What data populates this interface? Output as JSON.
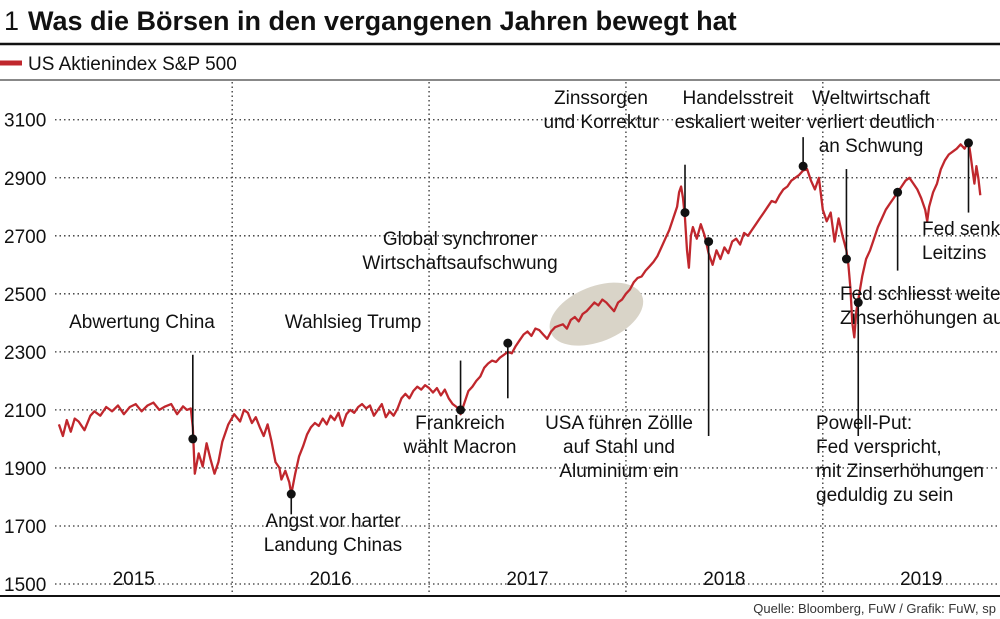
{
  "header": {
    "figure_number": "1",
    "title": "Was die Börsen in den vergangenen Jahren bewegt hat"
  },
  "source_text": "Quelle: Bloomberg, FuW / Grafik: FuW, sp",
  "colors": {
    "series": "#c0272d",
    "highlight": "#d9d4c8",
    "marker": "#111111",
    "rule": "#111111",
    "grid": "#333333"
  },
  "chart_data": {
    "type": "line",
    "title": "Was die Börsen in den vergangenen Jahren bewegt hat",
    "xlabel": "",
    "ylabel": "",
    "legend": {
      "label": "US Aktienindex S&P 500",
      "placement": "top-left"
    },
    "x_range": [
      2014.6,
      2019.4
    ],
    "ylim": [
      1500,
      3230
    ],
    "y_ticks": [
      1500,
      1700,
      1900,
      2100,
      2300,
      2500,
      2700,
      2900,
      3100
    ],
    "x_ticks": [
      2015,
      2016,
      2017,
      2018,
      2019
    ],
    "x_tick_labels": [
      "2015",
      "2016",
      "2017",
      "2018",
      "2019"
    ],
    "year_boundaries": [
      2015.5,
      2016.5,
      2017.5,
      2018.5
    ],
    "grid": true,
    "series": [
      {
        "name": "US Aktienindex S&P 500",
        "points": [
          [
            2014.62,
            2050
          ],
          [
            2014.64,
            2010
          ],
          [
            2014.66,
            2065
          ],
          [
            2014.68,
            2025
          ],
          [
            2014.7,
            2070
          ],
          [
            2014.72,
            2060
          ],
          [
            2014.75,
            2030
          ],
          [
            2014.78,
            2080
          ],
          [
            2014.8,
            2095
          ],
          [
            2014.83,
            2080
          ],
          [
            2014.86,
            2110
          ],
          [
            2014.89,
            2095
          ],
          [
            2014.92,
            2115
          ],
          [
            2014.95,
            2085
          ],
          [
            2014.98,
            2110
          ],
          [
            2015.01,
            2120
          ],
          [
            2015.04,
            2095
          ],
          [
            2015.07,
            2115
          ],
          [
            2015.1,
            2125
          ],
          [
            2015.13,
            2100
          ],
          [
            2015.16,
            2112
          ],
          [
            2015.19,
            2120
          ],
          [
            2015.22,
            2085
          ],
          [
            2015.25,
            2112
          ],
          [
            2015.27,
            2100
          ],
          [
            2015.29,
            2105
          ],
          [
            2015.3,
            2040
          ],
          [
            2015.31,
            1880
          ],
          [
            2015.33,
            1950
          ],
          [
            2015.35,
            1905
          ],
          [
            2015.37,
            1985
          ],
          [
            2015.39,
            1930
          ],
          [
            2015.41,
            1880
          ],
          [
            2015.43,
            1920
          ],
          [
            2015.45,
            1990
          ],
          [
            2015.48,
            2050
          ],
          [
            2015.51,
            2085
          ],
          [
            2015.54,
            2060
          ],
          [
            2015.56,
            2100
          ],
          [
            2015.58,
            2090
          ],
          [
            2015.6,
            2055
          ],
          [
            2015.62,
            2075
          ],
          [
            2015.64,
            2040
          ],
          [
            2015.66,
            2010
          ],
          [
            2015.68,
            2050
          ],
          [
            2015.7,
            1990
          ],
          [
            2015.72,
            1920
          ],
          [
            2015.74,
            1900
          ],
          [
            2015.75,
            1860
          ],
          [
            2015.77,
            1890
          ],
          [
            2015.79,
            1850
          ],
          [
            2015.8,
            1810
          ],
          [
            2015.82,
            1880
          ],
          [
            2015.84,
            1940
          ],
          [
            2015.86,
            1975
          ],
          [
            2015.88,
            2015
          ],
          [
            2015.9,
            2040
          ],
          [
            2015.92,
            2055
          ],
          [
            2015.94,
            2045
          ],
          [
            2015.96,
            2070
          ],
          [
            2015.98,
            2050
          ],
          [
            2016.0,
            2080
          ],
          [
            2016.02,
            2065
          ],
          [
            2016.04,
            2090
          ],
          [
            2016.06,
            2045
          ],
          [
            2016.08,
            2085
          ],
          [
            2016.1,
            2100
          ],
          [
            2016.12,
            2090
          ],
          [
            2016.14,
            2110
          ],
          [
            2016.16,
            2120
          ],
          [
            2016.18,
            2105
          ],
          [
            2016.2,
            2115
          ],
          [
            2016.22,
            2080
          ],
          [
            2016.24,
            2100
          ],
          [
            2016.26,
            2120
          ],
          [
            2016.28,
            2075
          ],
          [
            2016.3,
            2095
          ],
          [
            2016.32,
            2080
          ],
          [
            2016.34,
            2105
          ],
          [
            2016.36,
            2140
          ],
          [
            2016.38,
            2155
          ],
          [
            2016.4,
            2140
          ],
          [
            2016.42,
            2165
          ],
          [
            2016.44,
            2180
          ],
          [
            2016.46,
            2170
          ],
          [
            2016.48,
            2185
          ],
          [
            2016.5,
            2175
          ],
          [
            2016.52,
            2160
          ],
          [
            2016.54,
            2175
          ],
          [
            2016.56,
            2150
          ],
          [
            2016.58,
            2170
          ],
          [
            2016.6,
            2140
          ],
          [
            2016.62,
            2120
          ],
          [
            2016.64,
            2110
          ],
          [
            2016.66,
            2085
          ],
          [
            2016.68,
            2125
          ],
          [
            2016.7,
            2165
          ],
          [
            2016.72,
            2180
          ],
          [
            2016.74,
            2200
          ],
          [
            2016.76,
            2215
          ],
          [
            2016.78,
            2245
          ],
          [
            2016.8,
            2260
          ],
          [
            2016.82,
            2270
          ],
          [
            2016.84,
            2265
          ],
          [
            2016.86,
            2280
          ],
          [
            2016.88,
            2290
          ],
          [
            2016.9,
            2300
          ],
          [
            2016.92,
            2295
          ],
          [
            2016.94,
            2320
          ],
          [
            2016.96,
            2340
          ],
          [
            2016.98,
            2360
          ],
          [
            2017.0,
            2370
          ],
          [
            2017.02,
            2355
          ],
          [
            2017.04,
            2380
          ],
          [
            2017.06,
            2375
          ],
          [
            2017.08,
            2360
          ],
          [
            2017.1,
            2345
          ],
          [
            2017.12,
            2370
          ],
          [
            2017.14,
            2385
          ],
          [
            2017.16,
            2390
          ],
          [
            2017.18,
            2395
          ],
          [
            2017.2,
            2380
          ],
          [
            2017.22,
            2410
          ],
          [
            2017.24,
            2420
          ],
          [
            2017.26,
            2405
          ],
          [
            2017.28,
            2430
          ],
          [
            2017.3,
            2440
          ],
          [
            2017.32,
            2455
          ],
          [
            2017.34,
            2470
          ],
          [
            2017.36,
            2460
          ],
          [
            2017.38,
            2480
          ],
          [
            2017.4,
            2470
          ],
          [
            2017.42,
            2455
          ],
          [
            2017.44,
            2440
          ],
          [
            2017.46,
            2470
          ],
          [
            2017.48,
            2480
          ],
          [
            2017.5,
            2500
          ],
          [
            2017.52,
            2515
          ],
          [
            2017.54,
            2540
          ],
          [
            2017.56,
            2555
          ],
          [
            2017.58,
            2560
          ],
          [
            2017.6,
            2580
          ],
          [
            2017.62,
            2595
          ],
          [
            2017.64,
            2610
          ],
          [
            2017.66,
            2630
          ],
          [
            2017.68,
            2660
          ],
          [
            2017.7,
            2690
          ],
          [
            2017.72,
            2720
          ],
          [
            2017.74,
            2760
          ],
          [
            2017.76,
            2800
          ],
          [
            2017.77,
            2850
          ],
          [
            2017.78,
            2870
          ],
          [
            2017.79,
            2830
          ],
          [
            2017.8,
            2760
          ],
          [
            2017.81,
            2650
          ],
          [
            2017.82,
            2590
          ],
          [
            2017.83,
            2700
          ],
          [
            2017.84,
            2730
          ],
          [
            2017.86,
            2690
          ],
          [
            2017.88,
            2740
          ],
          [
            2017.9,
            2700
          ],
          [
            2017.92,
            2640
          ],
          [
            2017.94,
            2600
          ],
          [
            2017.96,
            2650
          ],
          [
            2017.98,
            2620
          ],
          [
            2018.0,
            2660
          ],
          [
            2018.02,
            2640
          ],
          [
            2018.04,
            2680
          ],
          [
            2018.06,
            2690
          ],
          [
            2018.08,
            2670
          ],
          [
            2018.1,
            2710
          ],
          [
            2018.12,
            2700
          ],
          [
            2018.14,
            2720
          ],
          [
            2018.16,
            2740
          ],
          [
            2018.18,
            2760
          ],
          [
            2018.2,
            2780
          ],
          [
            2018.22,
            2800
          ],
          [
            2018.24,
            2820
          ],
          [
            2018.26,
            2815
          ],
          [
            2018.28,
            2840
          ],
          [
            2018.3,
            2860
          ],
          [
            2018.32,
            2870
          ],
          [
            2018.34,
            2890
          ],
          [
            2018.36,
            2900
          ],
          [
            2018.38,
            2910
          ],
          [
            2018.4,
            2925
          ],
          [
            2018.42,
            2930
          ],
          [
            2018.44,
            2890
          ],
          [
            2018.46,
            2860
          ],
          [
            2018.48,
            2900
          ],
          [
            2018.5,
            2790
          ],
          [
            2018.52,
            2750
          ],
          [
            2018.54,
            2780
          ],
          [
            2018.56,
            2680
          ],
          [
            2018.58,
            2760
          ],
          [
            2018.6,
            2700
          ],
          [
            2018.62,
            2650
          ],
          [
            2018.63,
            2600
          ],
          [
            2018.64,
            2520
          ],
          [
            2018.65,
            2400
          ],
          [
            2018.66,
            2350
          ],
          [
            2018.67,
            2440
          ],
          [
            2018.68,
            2480
          ],
          [
            2018.7,
            2560
          ],
          [
            2018.72,
            2620
          ],
          [
            2018.74,
            2650
          ],
          [
            2018.76,
            2690
          ],
          [
            2018.78,
            2730
          ],
          [
            2018.8,
            2760
          ],
          [
            2018.82,
            2790
          ],
          [
            2018.84,
            2810
          ],
          [
            2018.86,
            2830
          ],
          [
            2018.88,
            2850
          ],
          [
            2018.9,
            2870
          ],
          [
            2018.92,
            2890
          ],
          [
            2018.94,
            2900
          ],
          [
            2018.96,
            2880
          ],
          [
            2018.98,
            2860
          ],
          [
            2019.0,
            2830
          ],
          [
            2019.02,
            2790
          ],
          [
            2019.03,
            2750
          ],
          [
            2019.04,
            2800
          ],
          [
            2019.06,
            2850
          ],
          [
            2019.08,
            2880
          ],
          [
            2019.1,
            2930
          ],
          [
            2019.12,
            2960
          ],
          [
            2019.14,
            2980
          ],
          [
            2019.16,
            2990
          ],
          [
            2019.18,
            3000
          ],
          [
            2019.2,
            3015
          ],
          [
            2019.22,
            3000
          ],
          [
            2019.24,
            3025
          ],
          [
            2019.25,
            2980
          ],
          [
            2019.26,
            2930
          ],
          [
            2019.27,
            2880
          ],
          [
            2019.28,
            2940
          ],
          [
            2019.29,
            2900
          ],
          [
            2019.3,
            2840
          ]
        ]
      }
    ],
    "highlight_ellipse": {
      "x_center": 2017.35,
      "y_center": 2430,
      "x_radius": 0.25,
      "y_radius": 95
    },
    "annotations": [
      {
        "text": [
          "Abwertung China"
        ],
        "point": [
          2015.3,
          2000
        ],
        "line_to_y": 2290,
        "label_anchor": "top"
      },
      {
        "text": [
          "Angst vor harter",
          "Landung Chinas"
        ],
        "point": [
          2015.8,
          1810
        ],
        "line_to_y": 1740,
        "label_anchor": "bottom"
      },
      {
        "text": [
          "Wahlsieg Trump"
        ],
        "point": [
          2016.66,
          2100
        ],
        "line_to_y": 2270,
        "label_anchor": "top"
      },
      {
        "text": [
          "Frankreich",
          "wählt Macron"
        ],
        "point": [
          2016.9,
          2330
        ],
        "line_to_y": 2140,
        "label_anchor": "bottom"
      },
      {
        "text": [
          "Global synchroner",
          "Wirtschaftsaufschwung"
        ],
        "point": null,
        "line_to_y": null,
        "label_anchor": "top"
      },
      {
        "text": [
          "Zinssorgen",
          "und Korrektur"
        ],
        "point": [
          2017.8,
          2780
        ],
        "line_to_y": 2945,
        "label_anchor": "top"
      },
      {
        "text": [
          "USA führen Zöllle",
          "auf Stahl und",
          "Aluminium ein"
        ],
        "point": [
          2017.92,
          2680
        ],
        "line_to_y": 2010,
        "label_anchor": "bottom"
      },
      {
        "text": [
          "Handelsstreit",
          "eskaliert weiter"
        ],
        "point": [
          2018.4,
          2940
        ],
        "line_to_y": 3040,
        "label_anchor": "top"
      },
      {
        "text": [
          "Weltwirtschaft",
          "verliert deutlich",
          "an Schwung"
        ],
        "point": [
          2018.62,
          2620
        ],
        "line_to_y": 2930,
        "label_anchor": "top"
      },
      {
        "text": [
          "Powell-Put:",
          "Fed verspricht,",
          "mit Zinserhöhungen",
          "geduldig zu sein"
        ],
        "point": [
          2018.68,
          2470
        ],
        "line_to_y": 2010,
        "label_anchor": "bottom"
      },
      {
        "text": [
          "Fed schliesst weitere",
          "Zinserhöhungen aus"
        ],
        "point": [
          2018.88,
          2850
        ],
        "line_to_y": 2580,
        "label_anchor": "bottom"
      },
      {
        "text": [
          "Fed senkt",
          "Leitzins"
        ],
        "point": [
          2019.24,
          3020
        ],
        "line_to_y": 2780,
        "label_anchor": "bottom"
      }
    ]
  }
}
